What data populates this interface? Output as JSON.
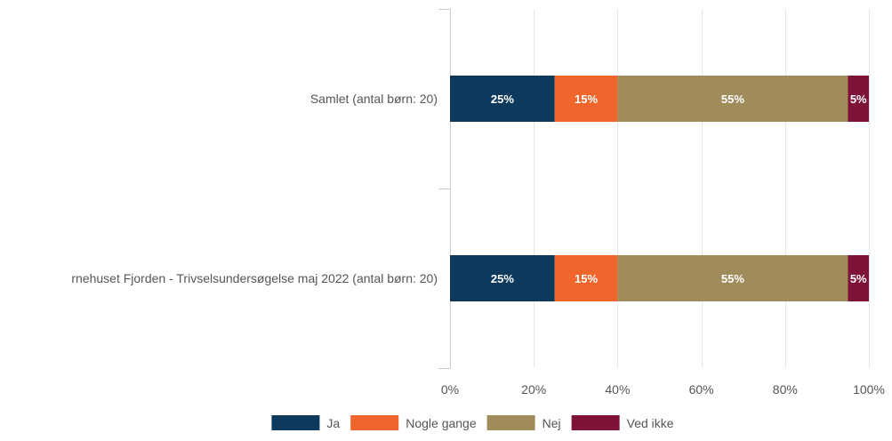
{
  "chart_data": {
    "type": "bar",
    "orientation": "horizontal",
    "stacked": true,
    "categories": [
      "Samlet (antal børn: 20)",
      "rnehuset Fjorden - Trivselsundersøgelse maj 2022 (antal børn: 20)"
    ],
    "series": [
      {
        "name": "Ja",
        "color": "#0d3a5c",
        "values": [
          25,
          25
        ],
        "labels": [
          "25%",
          "25%"
        ]
      },
      {
        "name": "Nogle gange",
        "color": "#f0652b",
        "values": [
          15,
          15
        ],
        "labels": [
          "15%",
          "15%"
        ]
      },
      {
        "name": "Nej",
        "color": "#a08b5a",
        "values": [
          55,
          55
        ],
        "labels": [
          "55%",
          "55%"
        ]
      },
      {
        "name": "Ved ikke",
        "color": "#7e1238",
        "values": [
          5,
          5
        ],
        "labels": [
          "5%",
          "5%"
        ]
      }
    ],
    "xlim": [
      0,
      100
    ],
    "ticks": [
      "0%",
      "20%",
      "40%",
      "60%",
      "80%",
      "100%"
    ],
    "tick_values": [
      0,
      20,
      40,
      60,
      80,
      100
    ],
    "grid": true,
    "legend_position": "bottom-center"
  }
}
